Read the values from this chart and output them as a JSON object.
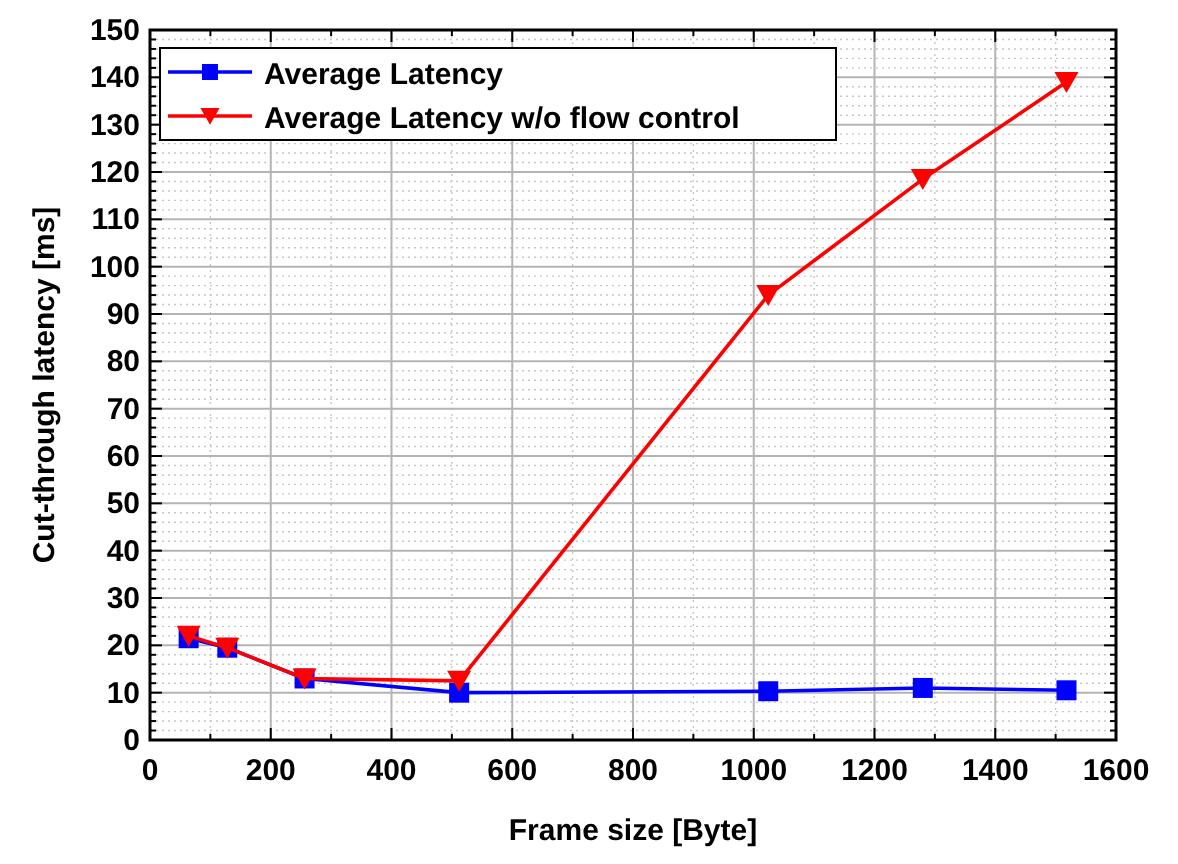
{
  "chart_data": {
    "type": "line",
    "xlabel": "Frame size [Byte]",
    "ylabel": "Cut-through latency [ms]",
    "xlim": [
      0,
      1600
    ],
    "ylim": [
      0,
      150
    ],
    "xticks": [
      0,
      {
        "value": 100,
        "label": null
      },
      200,
      {
        "value": 300,
        "label": null
      },
      400,
      {
        "value": 500,
        "label": null
      },
      600,
      {
        "value": 700,
        "label": null
      },
      800,
      {
        "value": 900,
        "label": null
      },
      1000,
      {
        "value": 1100,
        "label": null
      },
      1200,
      {
        "value": 1300,
        "label": null
      },
      1400,
      {
        "value": 1500,
        "label": null
      },
      1600
    ],
    "yticks": [
      0,
      10,
      20,
      30,
      40,
      50,
      60,
      70,
      80,
      90,
      100,
      110,
      120,
      130,
      140,
      150
    ],
    "grid": true,
    "legend": "top left",
    "line_style": "solid",
    "series": [
      {
        "name": "Average Latency",
        "color": "#0000ff",
        "marker": "square",
        "x": [
          64,
          128,
          256,
          512,
          1024,
          1280,
          1518
        ],
        "values": [
          21.5,
          19.5,
          13,
          10,
          10.3,
          11,
          10.5
        ]
      },
      {
        "name": "Average Latency w/o flow control",
        "color": "#ff0000",
        "marker": "triangle-down",
        "x": [
          64,
          128,
          256,
          512,
          1024,
          1280,
          1518
        ],
        "values": [
          22,
          19.5,
          13,
          12.5,
          94,
          118.5,
          139
        ]
      }
    ]
  }
}
